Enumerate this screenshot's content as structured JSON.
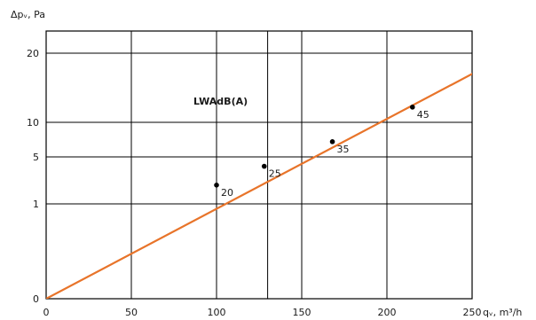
{
  "chart_data": {
    "type": "line",
    "inner_title": "LWAdB(A)",
    "xlabel": "qᵥ, m³/h",
    "ylabel": "Δpᵥ, Pa",
    "grid": true,
    "x_ticks": [
      0,
      50,
      100,
      150,
      200,
      250
    ],
    "x_ticks_irregular": [
      130
    ],
    "y_ticks": [
      "0",
      "1",
      "5",
      "10",
      "20"
    ],
    "series": [
      {
        "line_color": "#e8742a",
        "x": [
          0,
          260
        ],
        "y_pos": [
          0,
          18.3
        ]
      }
    ],
    "labeled_points": [
      {
        "label": "20",
        "x": 100,
        "y": 2.6
      },
      {
        "label": "25",
        "x": 128,
        "y": 4.2
      },
      {
        "label": "35",
        "x": 168,
        "y": 7.2
      },
      {
        "label": "45",
        "x": 215,
        "y": 12.2
      }
    ],
    "point_color": "#000000"
  }
}
